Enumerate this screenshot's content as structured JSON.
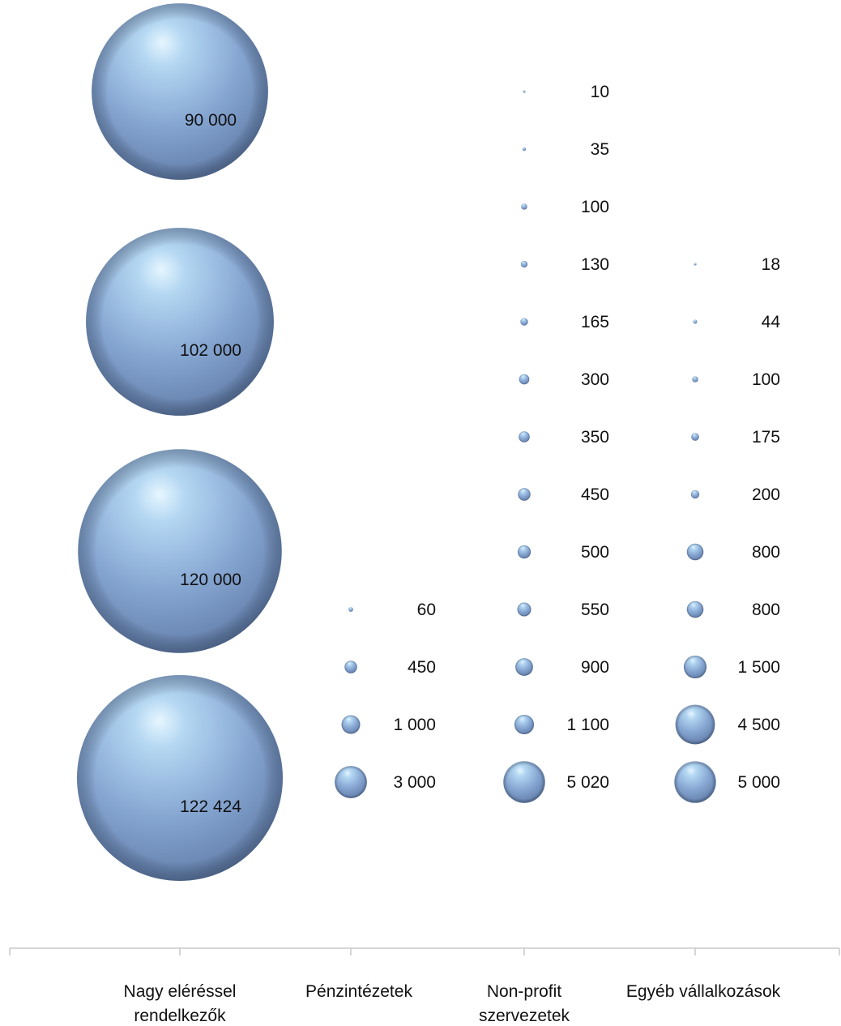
{
  "chart_data": {
    "type": "bubble",
    "title": "",
    "xlabel": "",
    "ylabel": "",
    "categories": [
      "Nagy eléréssel rendelkezők",
      "Pénzintézetek",
      "Non-profit szervezetek",
      "Egyéb vállalkozások"
    ],
    "category_lines": [
      [
        "Nagy eléréssel",
        "rendelkezők"
      ],
      [
        "Pénzintézetek"
      ],
      [
        "Non-profit",
        "szervezetek"
      ],
      [
        "Egyéb vállalkozások"
      ]
    ],
    "max_value": 122424,
    "bubble_color": "#7f9fcd",
    "series": [
      {
        "category": "Nagy eléréssel rendelkezők",
        "values": [
          90000,
          102000,
          120000,
          122424
        ],
        "labels": [
          "90 000",
          "102 000",
          "120 000",
          "122 424"
        ]
      },
      {
        "category": "Pénzintézetek",
        "values": [
          60,
          450,
          1000,
          3000
        ],
        "labels": [
          "60",
          "450",
          "1 000",
          "3 000"
        ]
      },
      {
        "category": "Non-profit szervezetek",
        "values": [
          10,
          35,
          100,
          130,
          165,
          300,
          350,
          450,
          500,
          550,
          900,
          1100,
          5020
        ],
        "labels": [
          "10",
          "35",
          "100",
          "130",
          "165",
          "300",
          "350",
          "450",
          "500",
          "550",
          "900",
          "1 100",
          "5 020"
        ]
      },
      {
        "category": "Egyéb vállalkozások",
        "values": [
          18,
          44,
          100,
          175,
          200,
          800,
          800,
          1500,
          4500,
          5000
        ],
        "labels": [
          "18",
          "44",
          "100",
          "175",
          "200",
          "800",
          "800",
          "1 500",
          "4 500",
          "5 000"
        ]
      }
    ]
  }
}
